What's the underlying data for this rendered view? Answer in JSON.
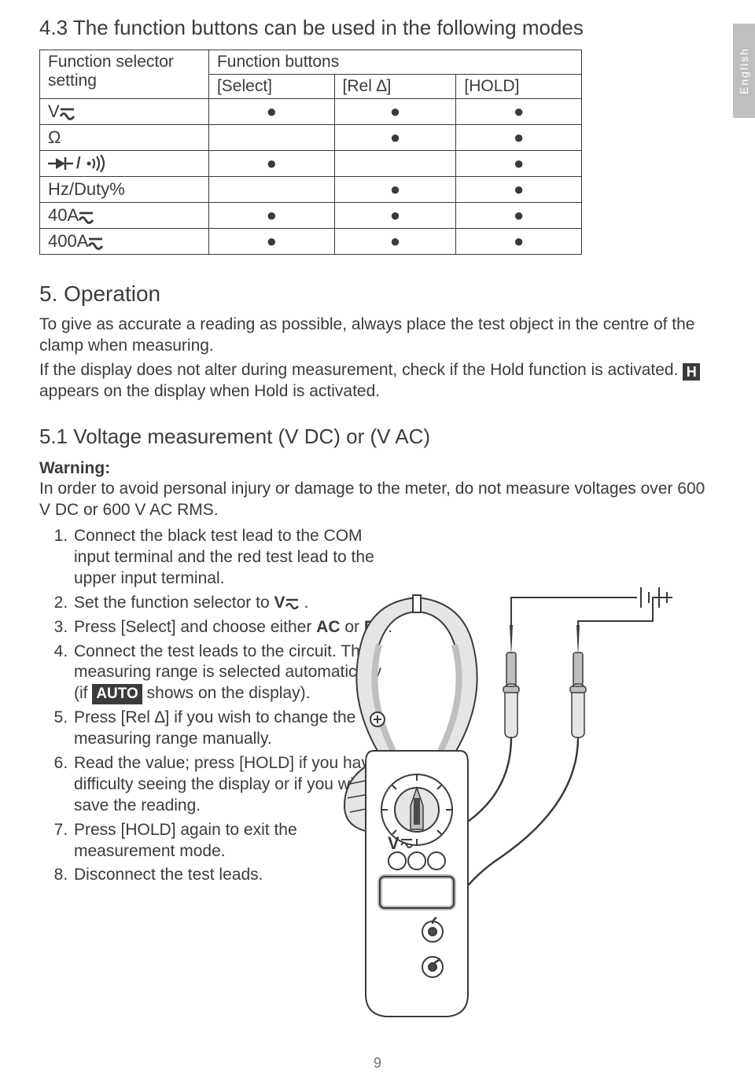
{
  "lang_tab": "English",
  "section_43_title": "4.3 The function buttons can be used in the following modes",
  "table": {
    "col_headers": {
      "setting_line1": "Function selector",
      "setting_line2": "setting",
      "buttons_line1": "Function buttons",
      "select": "[Select]",
      "rel": "[Rel ∆]",
      "hold": "[HOLD]"
    },
    "rows": [
      {
        "label": "V",
        "icon": "acdc",
        "select": "●",
        "rel": "●",
        "hold": "●"
      },
      {
        "label": "Ω",
        "icon": "",
        "select": "",
        "rel": "●",
        "hold": "●"
      },
      {
        "label": "",
        "icon": "diode_buzz",
        "select": "●",
        "rel": "",
        "hold": "●"
      },
      {
        "label": "Hz/Duty%",
        "icon": "",
        "select": "",
        "rel": "●",
        "hold": "●"
      },
      {
        "label": "40A",
        "icon": "acdc",
        "select": "●",
        "rel": "●",
        "hold": "●"
      },
      {
        "label": "400A",
        "icon": "acdc",
        "select": "●",
        "rel": "●",
        "hold": "●"
      }
    ]
  },
  "section_5_title": "5. Operation",
  "op_p1": "To give as accurate a reading as possible, always place the test object in the centre of the clamp when measuring.",
  "op_p2a": "If the display does not alter during measurement, check if the Hold function is activated. ",
  "op_p2_badge": "H",
  "op_p2b": " appears on the display when Hold is activated.",
  "section_51_title": "5.1 Voltage measurement (V DC) or (V AC)",
  "warning_label": "Warning:",
  "warning_text": "In order to avoid personal injury or damage to the meter, do not measure voltages over 600 V DC or 600 V AC RMS.",
  "steps": {
    "s1": "Connect the black test lead to the COM input terminal and the red test lead to the upper input terminal.",
    "s2a": "Set the function selector to ",
    "s2_v": "V",
    "s2b": ".",
    "s3a": "Press [Select] and choose either ",
    "s3_ac": "AC",
    "s3_or": " or ",
    "s3_dc": "DC",
    "s3b": ".",
    "s4a": "Connect the test leads to the circuit. The measuring range is selected automatically (if ",
    "s4_auto": "AUTO",
    "s4b": " shows on the display).",
    "s5": "Press [Rel ∆] if you wish to change the measuring range manually.",
    "s6": "Read the value; press [HOLD] if you have difficulty seeing the display or if you wish to save the reading.",
    "s7": "Press [HOLD] again to exit the measurement mode.",
    "s8": "Disconnect the test leads."
  },
  "page_number": "9",
  "diagram_v_label": "V",
  "colors": {
    "text": "#3b3b3b",
    "muted": "#707070",
    "tab_bg": "#bfbfbf",
    "badge_bg": "#3b3b3b",
    "line": "#3b3b3b",
    "fill_mid": "#bfbfbf",
    "fill_light": "#e5e5e5",
    "fill_dark": "#4a4a4a"
  }
}
